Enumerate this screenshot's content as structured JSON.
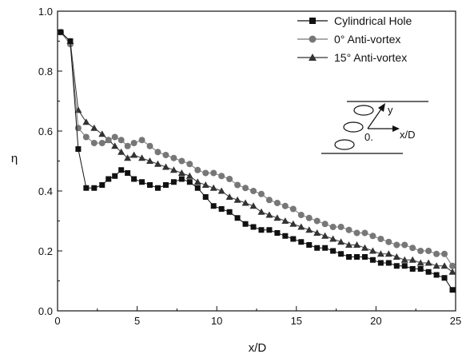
{
  "chart_data": {
    "type": "line",
    "xlabel": "x/D",
    "ylabel": "η",
    "xlim": [
      0,
      25
    ],
    "ylim": [
      0.0,
      1.0
    ],
    "xticks": [
      0,
      5,
      10,
      15,
      20,
      25
    ],
    "yticks": [
      0.0,
      0.2,
      0.4,
      0.6,
      0.8,
      1.0
    ],
    "grid": false,
    "legend_position": "top-right",
    "series": [
      {
        "name": "Cylindrical Hole",
        "marker": "square",
        "color": "#111111",
        "x": [
          0.2,
          0.8,
          1.3,
          1.8,
          2.3,
          2.8,
          3.2,
          3.6,
          4.0,
          4.4,
          4.8,
          5.3,
          5.8,
          6.3,
          6.8,
          7.3,
          7.8,
          8.3,
          8.8,
          9.3,
          9.8,
          10.3,
          10.8,
          11.3,
          11.8,
          12.3,
          12.8,
          13.3,
          13.8,
          14.3,
          14.8,
          15.3,
          15.8,
          16.3,
          16.8,
          17.3,
          17.8,
          18.3,
          18.8,
          19.3,
          19.8,
          20.3,
          20.8,
          21.3,
          21.8,
          22.3,
          22.8,
          23.3,
          23.8,
          24.3,
          24.8
        ],
        "y": [
          0.93,
          0.9,
          0.54,
          0.41,
          0.41,
          0.42,
          0.44,
          0.45,
          0.47,
          0.46,
          0.44,
          0.43,
          0.42,
          0.41,
          0.42,
          0.43,
          0.44,
          0.43,
          0.41,
          0.38,
          0.35,
          0.34,
          0.33,
          0.31,
          0.29,
          0.28,
          0.27,
          0.27,
          0.26,
          0.25,
          0.24,
          0.23,
          0.22,
          0.21,
          0.21,
          0.2,
          0.19,
          0.18,
          0.18,
          0.18,
          0.17,
          0.16,
          0.16,
          0.15,
          0.15,
          0.14,
          0.14,
          0.13,
          0.12,
          0.11,
          0.07
        ]
      },
      {
        "name": "0° Anti-vortex",
        "marker": "circle",
        "color": "#777777",
        "x": [
          0.2,
          0.8,
          1.3,
          1.8,
          2.3,
          2.8,
          3.2,
          3.6,
          4.0,
          4.4,
          4.8,
          5.3,
          5.8,
          6.3,
          6.8,
          7.3,
          7.8,
          8.3,
          8.8,
          9.3,
          9.8,
          10.3,
          10.8,
          11.3,
          11.8,
          12.3,
          12.8,
          13.3,
          13.8,
          14.3,
          14.8,
          15.3,
          15.8,
          16.3,
          16.8,
          17.3,
          17.8,
          18.3,
          18.8,
          19.3,
          19.8,
          20.3,
          20.8,
          21.3,
          21.8,
          22.3,
          22.8,
          23.3,
          23.8,
          24.3,
          24.8
        ],
        "y": [
          0.93,
          0.89,
          0.61,
          0.58,
          0.56,
          0.56,
          0.57,
          0.58,
          0.57,
          0.55,
          0.56,
          0.57,
          0.55,
          0.53,
          0.52,
          0.51,
          0.5,
          0.49,
          0.47,
          0.46,
          0.46,
          0.45,
          0.44,
          0.42,
          0.41,
          0.4,
          0.39,
          0.37,
          0.36,
          0.35,
          0.34,
          0.32,
          0.31,
          0.3,
          0.29,
          0.28,
          0.28,
          0.27,
          0.26,
          0.26,
          0.25,
          0.24,
          0.23,
          0.22,
          0.22,
          0.21,
          0.2,
          0.2,
          0.19,
          0.19,
          0.15
        ]
      },
      {
        "name": "15° Anti-vortex",
        "marker": "triangle",
        "color": "#333333",
        "x": [
          0.2,
          0.8,
          1.3,
          1.8,
          2.3,
          2.8,
          3.2,
          3.6,
          4.0,
          4.4,
          4.8,
          5.3,
          5.8,
          6.3,
          6.8,
          7.3,
          7.8,
          8.3,
          8.8,
          9.3,
          9.8,
          10.3,
          10.8,
          11.3,
          11.8,
          12.3,
          12.8,
          13.3,
          13.8,
          14.3,
          14.8,
          15.3,
          15.8,
          16.3,
          16.8,
          17.3,
          17.8,
          18.3,
          18.8,
          19.3,
          19.8,
          20.3,
          20.8,
          21.3,
          21.8,
          22.3,
          22.8,
          23.3,
          23.8,
          24.3,
          24.8
        ],
        "y": [
          0.93,
          0.9,
          0.67,
          0.63,
          0.61,
          0.59,
          0.57,
          0.55,
          0.53,
          0.51,
          0.52,
          0.51,
          0.5,
          0.49,
          0.48,
          0.47,
          0.46,
          0.45,
          0.43,
          0.42,
          0.41,
          0.4,
          0.38,
          0.37,
          0.36,
          0.35,
          0.33,
          0.32,
          0.31,
          0.3,
          0.29,
          0.28,
          0.27,
          0.26,
          0.25,
          0.24,
          0.23,
          0.22,
          0.22,
          0.21,
          0.2,
          0.19,
          0.19,
          0.18,
          0.17,
          0.17,
          0.16,
          0.16,
          0.15,
          0.15,
          0.13
        ]
      }
    ],
    "inset": {
      "labels": [
        "y",
        "x/D",
        "0."
      ]
    }
  }
}
